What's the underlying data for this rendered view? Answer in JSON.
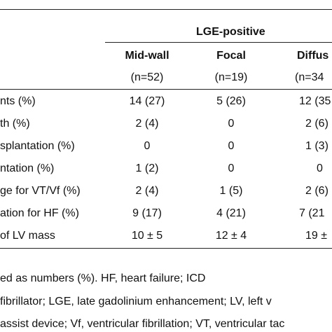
{
  "table": {
    "group_header": "LGE-positive",
    "columns": [
      {
        "label": "Mid-wall",
        "n": "(n=52)"
      },
      {
        "label": "Focal",
        "n": "(n=19)"
      },
      {
        "label": "Diffus",
        "n": "(n=34"
      }
    ],
    "rows": [
      {
        "label": "nts (%)",
        "cells": [
          "14 (27)",
          "5 (26)",
          "12 (35"
        ]
      },
      {
        "label": "th (%)",
        "cells": [
          "2 (4)",
          "0",
          "2 (6)"
        ]
      },
      {
        "label": "splantation (%)",
        "cells": [
          "0",
          "0",
          "1 (3)"
        ]
      },
      {
        "label": "ntation (%)",
        "cells": [
          "1 (2)",
          "0",
          "0"
        ]
      },
      {
        "label": "ge for VT/Vf (%)",
        "cells": [
          "2 (4)",
          "1 (5)",
          "2 (6)"
        ]
      },
      {
        "label": "ation for HF (%)",
        "cells": [
          "9 (17)",
          "4 (21)",
          "7 (21"
        ]
      },
      {
        "label": "of LV mass",
        "cells": [
          "10 ± 5",
          "12 ± 4",
          "19 ±"
        ]
      }
    ]
  },
  "footnotes": [
    "ed   as   numbers   (%).   HF,   heart   failure;   ICD",
    "fibrillator; LGE, late gadolinium enhancement; LV, left v",
    "assist device; Vf, ventricular fibrillation; VT, ventricular tac"
  ]
}
